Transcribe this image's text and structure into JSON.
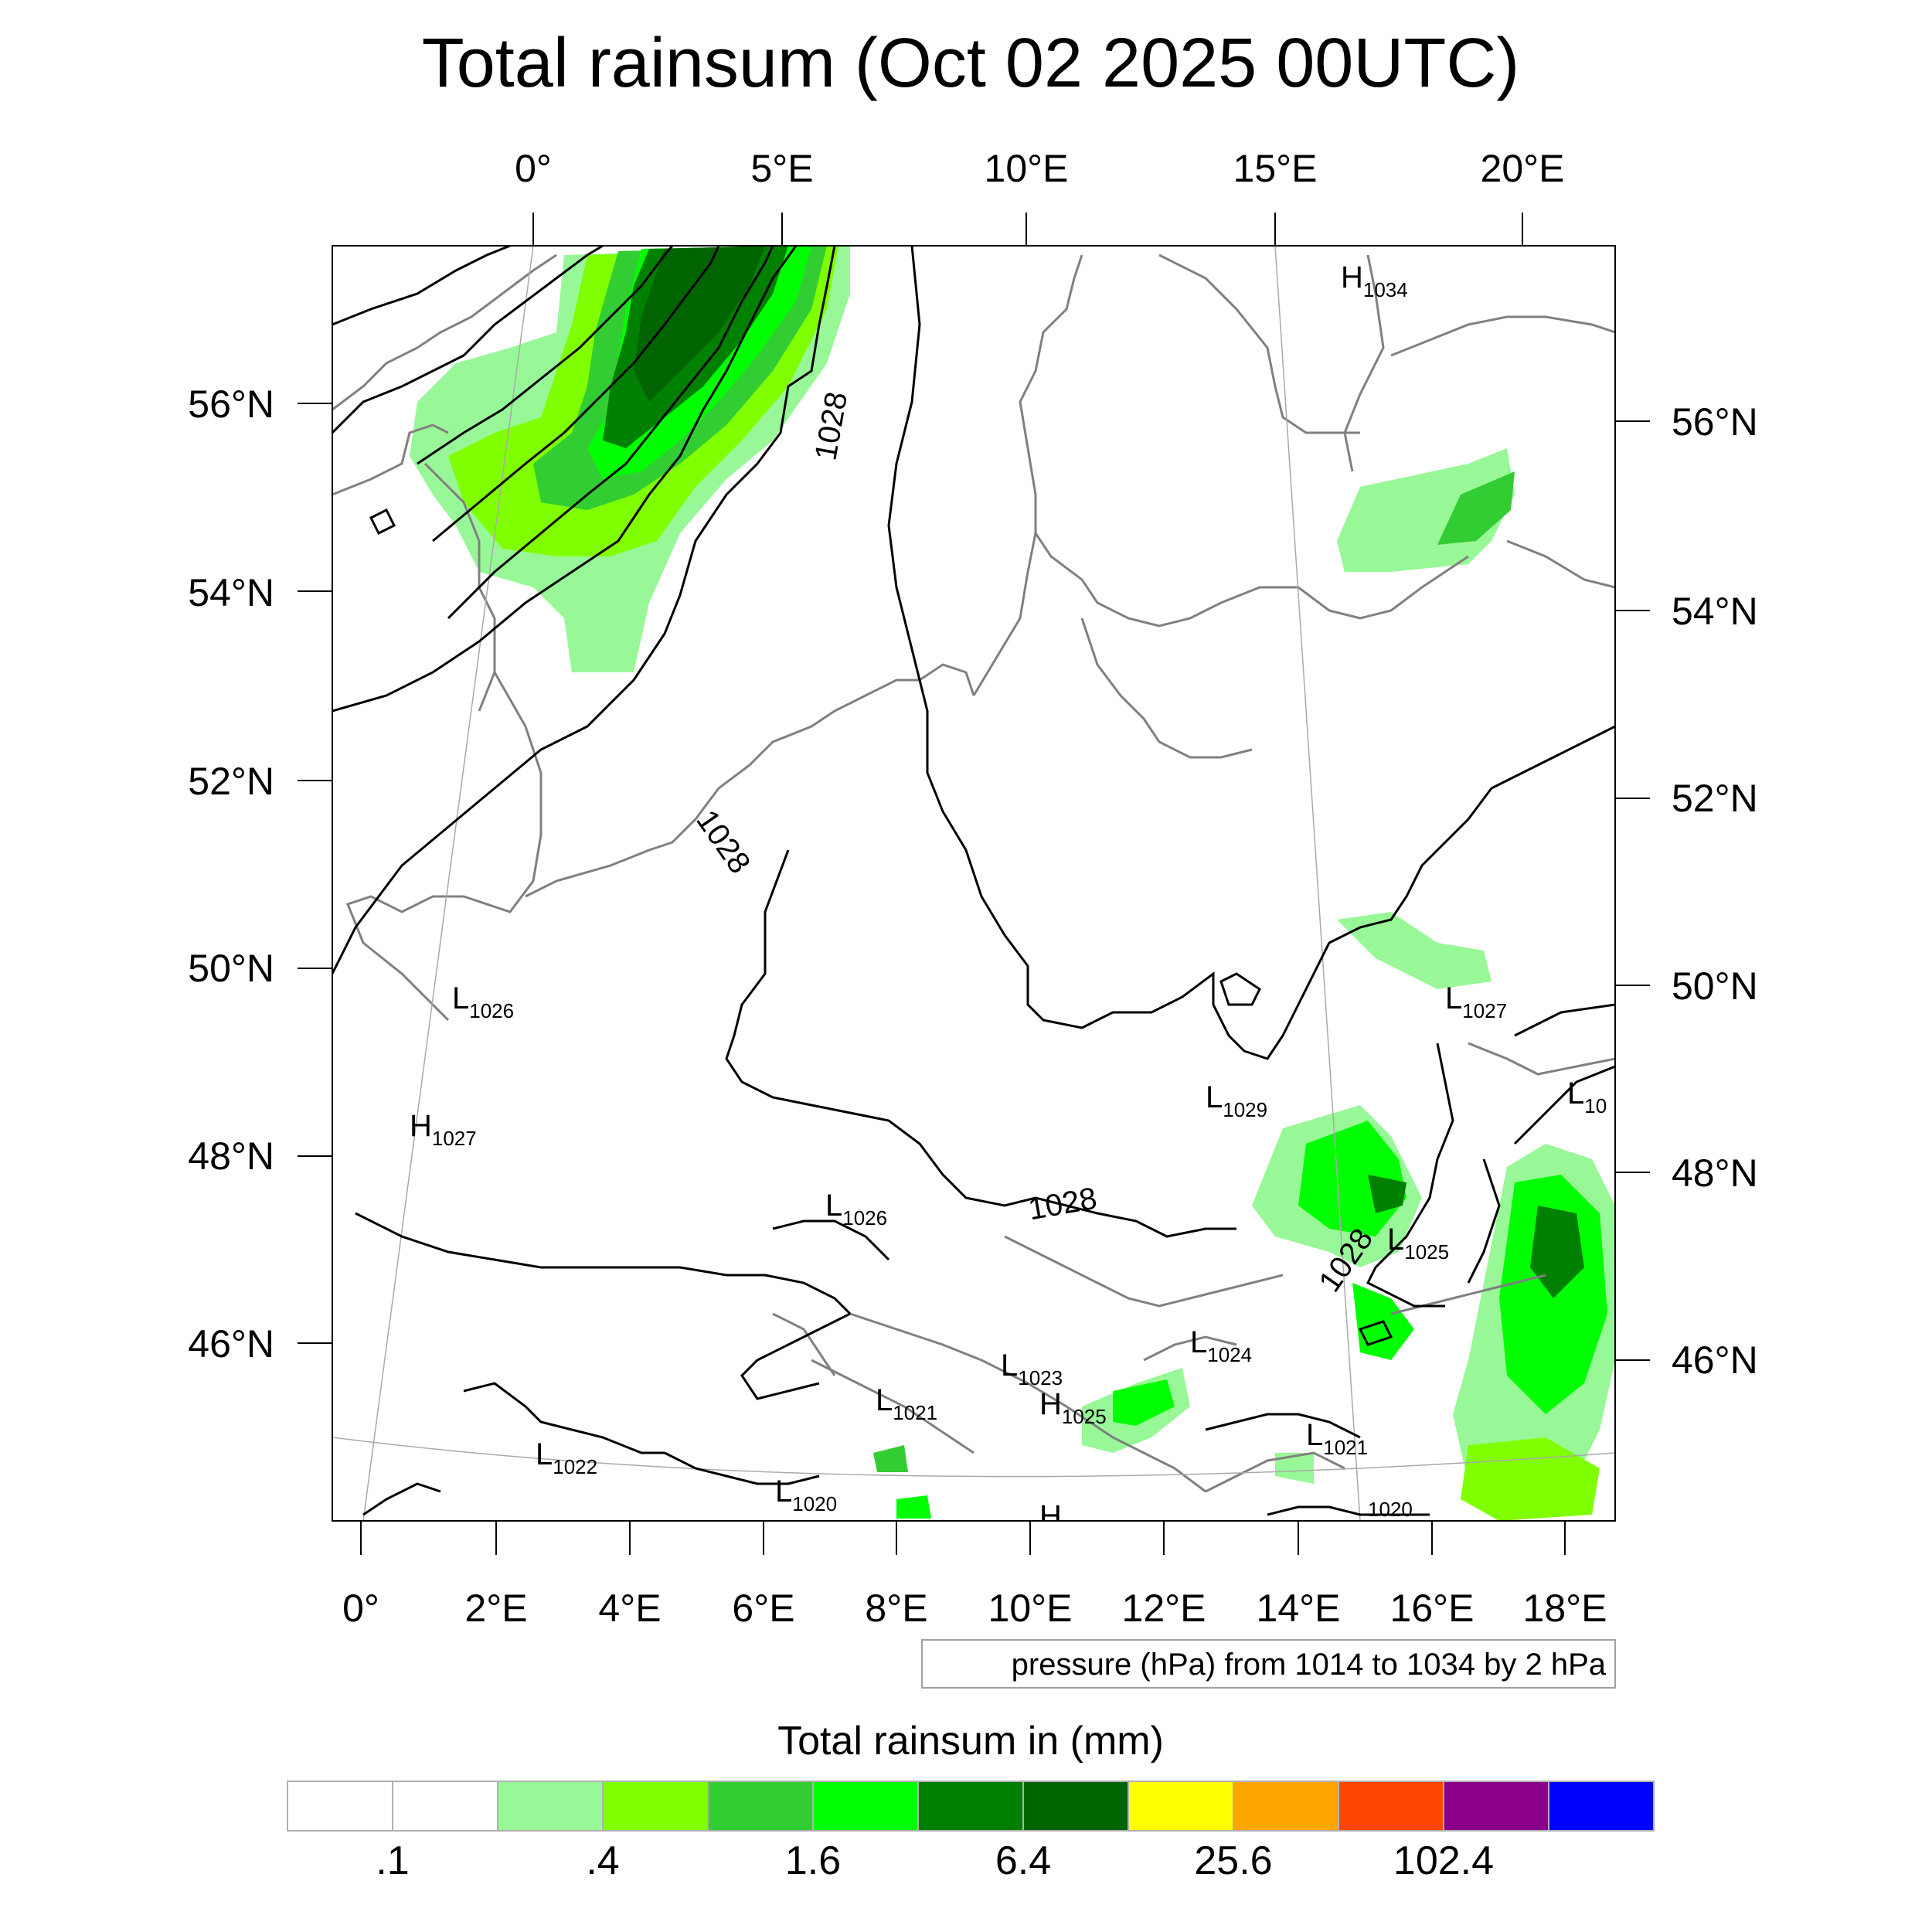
{
  "title": "Total rainsum (Oct 02 2025 00UTC)",
  "top_lon_labels": [
    "0°",
    "5°E",
    "10°E",
    "15°E",
    "20°E"
  ],
  "left_lat_labels": [
    "56°N",
    "54°N",
    "52°N",
    "50°N",
    "48°N",
    "46°N"
  ],
  "right_lat_labels": [
    "56°N",
    "54°N",
    "52°N",
    "50°N",
    "48°N",
    "46°N"
  ],
  "bottom_lon_labels": [
    "0°",
    "2°E",
    "4°E",
    "6°E",
    "8°E",
    "10°E",
    "12°E",
    "14°E",
    "16°E",
    "18°E"
  ],
  "isobar_labels": [
    "1028",
    "1028",
    "1028",
    "1028",
    "1020"
  ],
  "pressure_centers": [
    {
      "type": "H",
      "value": "1034"
    },
    {
      "type": "L",
      "value": "1026"
    },
    {
      "type": "H",
      "value": "1027"
    },
    {
      "type": "L",
      "value": "1027"
    },
    {
      "type": "L",
      "value": "1029"
    },
    {
      "type": "L",
      "value": "10"
    },
    {
      "type": "L",
      "value": "1026"
    },
    {
      "type": "L",
      "value": "1025"
    },
    {
      "type": "L",
      "value": "1024"
    },
    {
      "type": "L",
      "value": "1023"
    },
    {
      "type": "H",
      "value": "1025"
    },
    {
      "type": "L",
      "value": "1021"
    },
    {
      "type": "L",
      "value": "1022"
    },
    {
      "type": "L",
      "value": "1021"
    },
    {
      "type": "L",
      "value": "1020"
    },
    {
      "type": "H",
      "value": ""
    }
  ],
  "pressure_note": "pressure (hPa) from 1014 to 1034 by 2 hPa",
  "legend": {
    "title": "Total rainsum in (mm)",
    "colors": [
      "#ffffff",
      "#ffffff",
      "#98f898",
      "#80ff00",
      "#32cd32",
      "#00ff00",
      "#008000",
      "#006400",
      "#ffff00",
      "#ffa500",
      "#ff4500",
      "#8b008b",
      "#0000ff"
    ],
    "labels": [
      ".1",
      ".4",
      "1.6",
      "6.4",
      "25.6",
      "102.4"
    ]
  },
  "colors": {
    "rain_light": "#98f898",
    "rain_lime": "#80ff00",
    "rain_mid": "#32cd32",
    "rain_bright": "#00ff00",
    "rain_dark": "#008000",
    "rain_darkest": "#006400",
    "coast": "#808080",
    "isobar": "#000000"
  }
}
